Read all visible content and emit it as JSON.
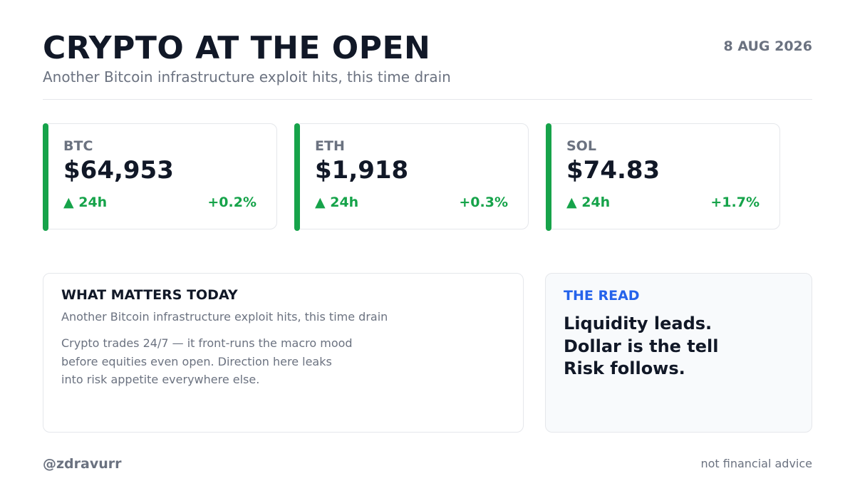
{
  "header": {
    "title": "CRYPTO AT THE OPEN",
    "date": "8 AUG 2026",
    "subtitle": "Another Bitcoin infrastructure exploit hits, this time drain"
  },
  "colors": {
    "up": "#16a34a",
    "accent": "#2563eb",
    "text": "#111827",
    "muted": "#6b7280"
  },
  "tickers": [
    {
      "symbol": "BTC",
      "price": "$64,953",
      "period": "▲ 24h",
      "change": "+0.2%",
      "direction": "up",
      "icon": "up-triangle-icon"
    },
    {
      "symbol": "ETH",
      "price": "$1,918",
      "period": "▲ 24h",
      "change": "+0.3%",
      "direction": "up",
      "icon": "up-triangle-icon"
    },
    {
      "symbol": "SOL",
      "price": "$74.83",
      "period": "▲ 24h",
      "change": "+1.7%",
      "direction": "up",
      "icon": "up-triangle-icon"
    }
  ],
  "what_matters": {
    "heading": "WHAT MATTERS TODAY",
    "headline": "Another Bitcoin infrastructure exploit hits, this time drain",
    "body_lines": [
      "Crypto trades 24/7 — it front-runs the macro mood",
      "before equities even open. Direction here leaks",
      "into risk appetite everywhere else."
    ]
  },
  "the_read": {
    "heading": "THE READ",
    "lines": [
      "Liquidity leads.",
      "Dollar is the tell",
      "Risk follows."
    ]
  },
  "footer": {
    "handle": "@zdravurr",
    "disclaimer": "not financial advice"
  }
}
